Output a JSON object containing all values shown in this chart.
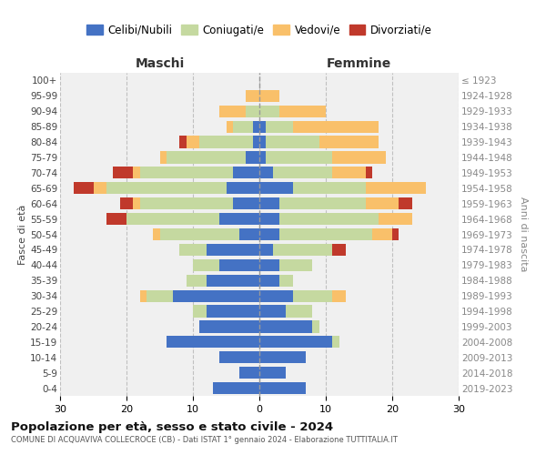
{
  "age_groups": [
    "0-4",
    "5-9",
    "10-14",
    "15-19",
    "20-24",
    "25-29",
    "30-34",
    "35-39",
    "40-44",
    "45-49",
    "50-54",
    "55-59",
    "60-64",
    "65-69",
    "70-74",
    "75-79",
    "80-84",
    "85-89",
    "90-94",
    "95-99",
    "100+"
  ],
  "birth_years": [
    "2019-2023",
    "2014-2018",
    "2009-2013",
    "2004-2008",
    "1999-2003",
    "1994-1998",
    "1989-1993",
    "1984-1988",
    "1979-1983",
    "1974-1978",
    "1969-1973",
    "1964-1968",
    "1959-1963",
    "1954-1958",
    "1949-1953",
    "1944-1948",
    "1939-1943",
    "1934-1938",
    "1929-1933",
    "1924-1928",
    "≤ 1923"
  ],
  "colors": {
    "celibe": "#4472C4",
    "coniugato": "#c5d9a0",
    "vedovo": "#f9c06a",
    "divorziato": "#c0392b"
  },
  "maschi": {
    "celibe": [
      7,
      3,
      6,
      14,
      9,
      8,
      13,
      8,
      6,
      8,
      3,
      6,
      4,
      5,
      4,
      2,
      1,
      1,
      0,
      0,
      0
    ],
    "coniugato": [
      0,
      0,
      0,
      0,
      0,
      2,
      4,
      3,
      4,
      4,
      12,
      14,
      14,
      18,
      14,
      12,
      8,
      3,
      2,
      0,
      0
    ],
    "vedovo": [
      0,
      0,
      0,
      0,
      0,
      0,
      1,
      0,
      0,
      0,
      1,
      0,
      1,
      2,
      1,
      1,
      2,
      1,
      4,
      2,
      0
    ],
    "divorziato": [
      0,
      0,
      0,
      0,
      0,
      0,
      0,
      0,
      0,
      0,
      0,
      3,
      2,
      3,
      3,
      0,
      1,
      0,
      0,
      0,
      0
    ]
  },
  "femmine": {
    "nubile": [
      7,
      4,
      7,
      11,
      8,
      4,
      5,
      3,
      3,
      2,
      3,
      3,
      3,
      5,
      2,
      1,
      1,
      1,
      0,
      0,
      0
    ],
    "coniugata": [
      0,
      0,
      0,
      1,
      1,
      4,
      6,
      2,
      5,
      9,
      14,
      15,
      13,
      11,
      9,
      10,
      8,
      4,
      3,
      0,
      0
    ],
    "vedova": [
      0,
      0,
      0,
      0,
      0,
      0,
      2,
      0,
      0,
      0,
      3,
      5,
      5,
      9,
      5,
      8,
      9,
      13,
      7,
      3,
      0
    ],
    "divorziata": [
      0,
      0,
      0,
      0,
      0,
      0,
      0,
      0,
      0,
      2,
      1,
      0,
      2,
      0,
      1,
      0,
      0,
      0,
      0,
      0,
      0
    ]
  },
  "xlim": 30,
  "title": "Popolazione per età, sesso e stato civile - 2024",
  "subtitle": "COMUNE DI ACQUAVIVA COLLECROCE (CB) - Dati ISTAT 1° gennaio 2024 - Elaborazione TUTTITALIA.IT",
  "ylabel_left": "Fasce di età",
  "ylabel_right": "Anni di nascita",
  "xlabel_left": "Maschi",
  "xlabel_right": "Femmine",
  "bg_color": "#f0f0f0",
  "grid_color": "#bbbbbb"
}
